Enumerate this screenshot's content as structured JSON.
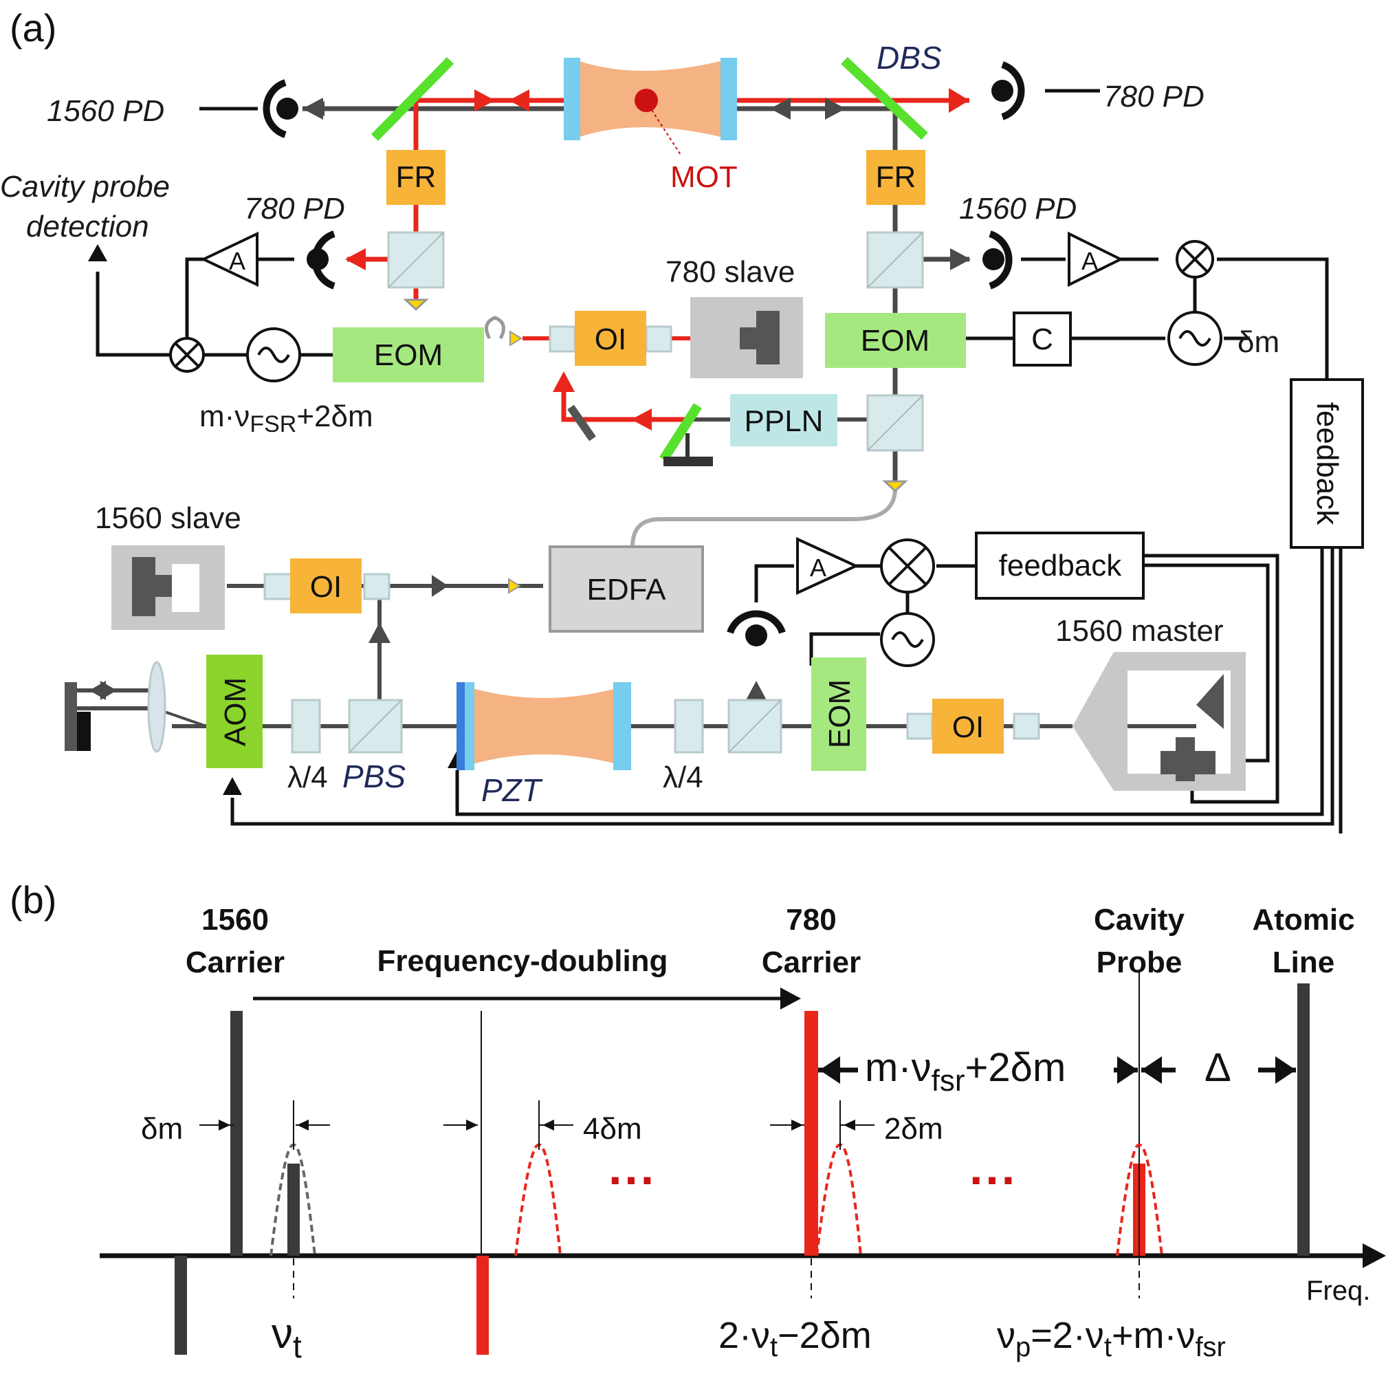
{
  "panel_a": {
    "label": "(a)",
    "top_left_pd": "1560 PD",
    "top_right_pd": "780 PD",
    "dbs": "DBS",
    "mot": "MOT",
    "fr_left": "FR",
    "fr_right": "FR",
    "cavity_probe_detection_1": "Cavity probe",
    "cavity_probe_detection_2": "detection",
    "mid_left_pd": "780 PD",
    "mid_right_pd": "1560 PD",
    "amp": "A",
    "eom_left": "EOM",
    "eom_right": "EOM",
    "oi": "OI",
    "slave_780": "780 slave",
    "c_box": "C",
    "delta_m": "δm",
    "mod_freq_1": "m·ν",
    "mod_freq_sub": "FSR",
    "mod_freq_2": "+2δm",
    "ppln": "PPLN",
    "feedback_vertical": "feedback",
    "slave_1560": "1560 slave",
    "edfa": "EDFA",
    "feedback_box": "feedback",
    "master_1560": "1560 master",
    "aom": "AOM",
    "eom_vertical": "EOM",
    "lambda4_left": "λ/4",
    "pbs": "PBS",
    "pzt": "PZT",
    "lambda4_right": "λ/4"
  },
  "panel_b": {
    "label": "(b)",
    "carrier_1560_1": "1560",
    "carrier_1560_2": "Carrier",
    "freq_doubling": "Frequency-doubling",
    "carrier_780_1": "780",
    "carrier_780_2": "Carrier",
    "cavity_probe_1": "Cavity",
    "cavity_probe_2": "Probe",
    "atomic_line_1": "Atomic",
    "atomic_line_2": "Line",
    "delta_m": "δm",
    "four_delta_m": "4δm",
    "two_delta_m": "2δm",
    "m_nu_fsr_1": "m·ν",
    "m_nu_fsr_sub": "fsr",
    "m_nu_fsr_2": "+2δm",
    "big_delta": "Δ",
    "dots": "···",
    "freq_axis": "Freq.",
    "nu_t": "ν",
    "nu_t_sub": "t",
    "two_nu_t_1": "2·ν",
    "two_nu_t_sub": "t",
    "two_nu_t_2": "−2δm",
    "nu_p_1": "ν",
    "nu_p_sub1": "p",
    "nu_p_2": "=2·ν",
    "nu_p_sub2": "t",
    "nu_p_3": "+m·ν",
    "nu_p_sub3": "fsr"
  },
  "colors": {
    "red_beam": "#e8261c",
    "dark_beam": "#4a4a4a",
    "orange_box": "#f7b439",
    "green_eom": "#a6e880",
    "aom_green": "#8ad42c",
    "cavity_fill": "#f5b283",
    "mirror_blue": "#76cdee",
    "grey_box": "#c8c8c8",
    "pbs_cube": "#d8eaec",
    "ppln_fill": "#bfe6e6",
    "mirror_green": "#57e02c"
  }
}
